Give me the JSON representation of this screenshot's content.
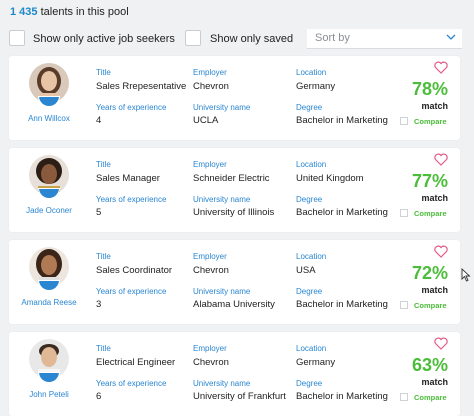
{
  "header": {
    "count": "1 435",
    "count_suffix": " talents in this pool"
  },
  "filters": {
    "active_label": "Show only active job seekers",
    "saved_label": "Show only saved",
    "sort_placeholder": "Sort by"
  },
  "field_labels": {
    "title": "Title",
    "employer": "Employer",
    "location": "Location",
    "years": "Years of experience",
    "university": "University name",
    "degree": "Degree",
    "match": "match",
    "compare": "Compare"
  },
  "colors": {
    "accent": "#2a86d1",
    "match_green": "#4cbd3a",
    "heart": "#e25b8a"
  },
  "candidates": [
    {
      "name": "Ann Willcox",
      "title": "Sales Rrepesentative",
      "employer": "Chevron",
      "location": "Germany",
      "years": "4",
      "university": "UCLA",
      "degree": "Bachelor in Marketing",
      "match_pct": "78%"
    },
    {
      "name": "Jade Oconer",
      "title": "Sales Manager",
      "employer": "Schneider Electric",
      "location": "United Kingdom",
      "years": "5",
      "university": "University of Illinois",
      "degree": "Bachelor in Marketing",
      "match_pct": "77%"
    },
    {
      "name": "Amanda Reese",
      "title": "Sales Coordinator",
      "employer": "Chevron",
      "location": "USA",
      "years": "3",
      "university": "Alabama University",
      "degree": "Bachelor in Marketing",
      "match_pct": "72%"
    },
    {
      "name": "John Peteli",
      "title": "Electrical Engineer",
      "employer": "Chevron",
      "location": "Germany",
      "years": "6",
      "university": "University of Frankfurt",
      "degree": "Bachelor in Marketing",
      "match_pct": "63%"
    }
  ]
}
